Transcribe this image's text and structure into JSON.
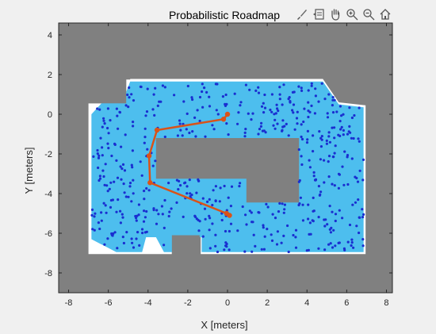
{
  "toolbar": {
    "icons": [
      "brush-icon",
      "data-tip-icon",
      "pan-hand-icon",
      "zoom-in-icon",
      "zoom-out-icon",
      "home-icon"
    ]
  },
  "chart_data": {
    "type": "scatter",
    "title": "Probabilistic Roadmap",
    "xlabel": "X [meters]",
    "ylabel": "Y [meters]",
    "xlim": [
      -8.5,
      8.3
    ],
    "ylim": [
      -9.0,
      4.6
    ],
    "xticks": [
      -8,
      -6,
      -4,
      -2,
      0,
      2,
      4,
      6,
      8
    ],
    "yticks": [
      4,
      2,
      0,
      -2,
      -4,
      -6,
      -8
    ],
    "xtick_labels": [
      "-8",
      "-6",
      "-4",
      "-2",
      "0",
      "2",
      "4",
      "6",
      "8"
    ],
    "ytick_labels": [
      "4",
      "2",
      "0",
      "-2",
      "-4",
      "-6",
      "-8"
    ],
    "grid": false,
    "colors": {
      "occupied": "#808080",
      "free": "#ffffff",
      "roadmap_region": "#4dbeee",
      "nodes": "#1a2fd0",
      "path": "#d95319",
      "axes_bg": "#ffffff",
      "figure_bg": "#f0f0f0"
    },
    "free_space": {
      "outline": [
        [
          -7.0,
          1.75
        ],
        [
          -5.1,
          1.75
        ],
        [
          -5.1,
          0.55
        ],
        [
          -7.0,
          0.55
        ]
      ],
      "note": "map interior"
    },
    "roadmap_region_outline": [
      [
        -6.85,
        0.0
      ],
      [
        -6.3,
        0.6
      ],
      [
        -5.3,
        0.6
      ],
      [
        -4.9,
        1.65
      ],
      [
        2.7,
        1.65
      ],
      [
        4.8,
        1.65
      ],
      [
        5.6,
        0.5
      ],
      [
        6.85,
        0.35
      ],
      [
        6.85,
        -6.95
      ],
      [
        -1.3,
        -6.95
      ],
      [
        -1.3,
        -6.2
      ],
      [
        -2.7,
        -6.2
      ],
      [
        -2.7,
        -6.95
      ],
      [
        -3.2,
        -6.95
      ],
      [
        -3.6,
        -6.2
      ],
      [
        -4.1,
        -6.2
      ],
      [
        -4.3,
        -6.95
      ],
      [
        -5.6,
        -6.95
      ],
      [
        -6.85,
        -6.3
      ]
    ],
    "obstacles": [
      {
        "name": "top-left-notch",
        "polygon": [
          [
            -7.1,
            4.2
          ],
          [
            -7.1,
            1.7
          ],
          [
            -5.1,
            1.7
          ],
          [
            -5.1,
            0.55
          ],
          [
            -6.9,
            0.55
          ],
          [
            -6.9,
            -7.05
          ],
          [
            -5.8,
            -7.05
          ]
        ]
      },
      {
        "name": "center-block",
        "polygon": [
          [
            -3.6,
            -1.3
          ],
          [
            3.6,
            -1.3
          ],
          [
            3.6,
            -4.4
          ],
          [
            1.0,
            -4.4
          ],
          [
            1.0,
            -3.2
          ],
          [
            -3.6,
            -3.2
          ]
        ]
      },
      {
        "name": "bottom-notch",
        "polygon": [
          [
            -2.8,
            -6.1
          ],
          [
            -1.4,
            -6.1
          ],
          [
            -1.4,
            -7.05
          ],
          [
            -2.8,
            -7.05
          ]
        ]
      }
    ],
    "path": {
      "name": "",
      "x": [
        0.0,
        -0.2,
        -3.55,
        -3.95,
        -3.9,
        -0.05,
        0.1
      ],
      "y": [
        0.0,
        -0.25,
        -0.8,
        -2.1,
        -3.45,
        -5.0,
        -5.1
      ]
    },
    "nodes": {
      "count": 560,
      "seed": 7
    }
  }
}
